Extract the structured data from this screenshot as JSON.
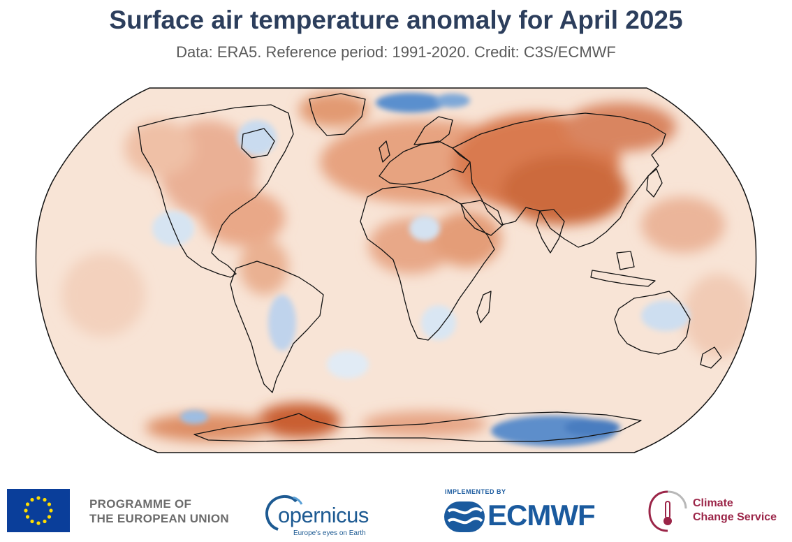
{
  "header": {
    "title": "Surface air temperature anomaly for April 2025",
    "subtitle": "Data: ERA5.  Reference period: 1991-2020.  Credit: C3S/ECMWF"
  },
  "map": {
    "projection": "Robinson",
    "color_scale": {
      "warm": "#c4552a",
      "neutral": "#fbefe6",
      "cool": "#3a72b8"
    }
  },
  "footer": {
    "eu": {
      "line1": "PROGRAMME OF",
      "line2": "THE EUROPEAN UNION"
    },
    "copernicus": {
      "name": "opernicus",
      "tagline": "Europe's eyes on Earth"
    },
    "ecmwf": {
      "implemented_by": "IMPLEMENTED BY",
      "name": "ECMWF"
    },
    "c3s": {
      "line1": "Climate",
      "line2": "Change Service"
    }
  },
  "colors": {
    "title": "#2c3e5c",
    "eu_blue": "#0a3e9a",
    "eu_star": "#ffdd00",
    "copernicus_blue": "#1d5a92",
    "ecmwf_blue": "#1a5a9e",
    "c3s_red": "#9b2548"
  }
}
